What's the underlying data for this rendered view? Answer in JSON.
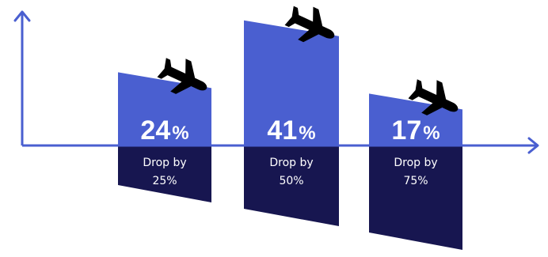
{
  "chart_data": {
    "type": "bar",
    "categories": [
      "Drop by 25%",
      "Drop by 50%",
      "Drop by 75%"
    ],
    "series": [
      {
        "values": [
          24,
          41,
          17
        ]
      }
    ],
    "value_suffix": "%",
    "drop_labels": [
      {
        "line1": "Drop by",
        "line2": "25%"
      },
      {
        "line1": "Drop by",
        "line2": "50%"
      },
      {
        "line1": "Drop by",
        "line2": "75%"
      }
    ],
    "ylim": [
      0,
      45
    ],
    "grid": false,
    "legend": "none",
    "bar_icon": "airplane-icon",
    "colors": {
      "axis": "#4a5fd0",
      "bar_top": "#4a5fd0",
      "bar_bottom": "#171650",
      "icon": "#000000",
      "label": "#ffffff"
    }
  }
}
